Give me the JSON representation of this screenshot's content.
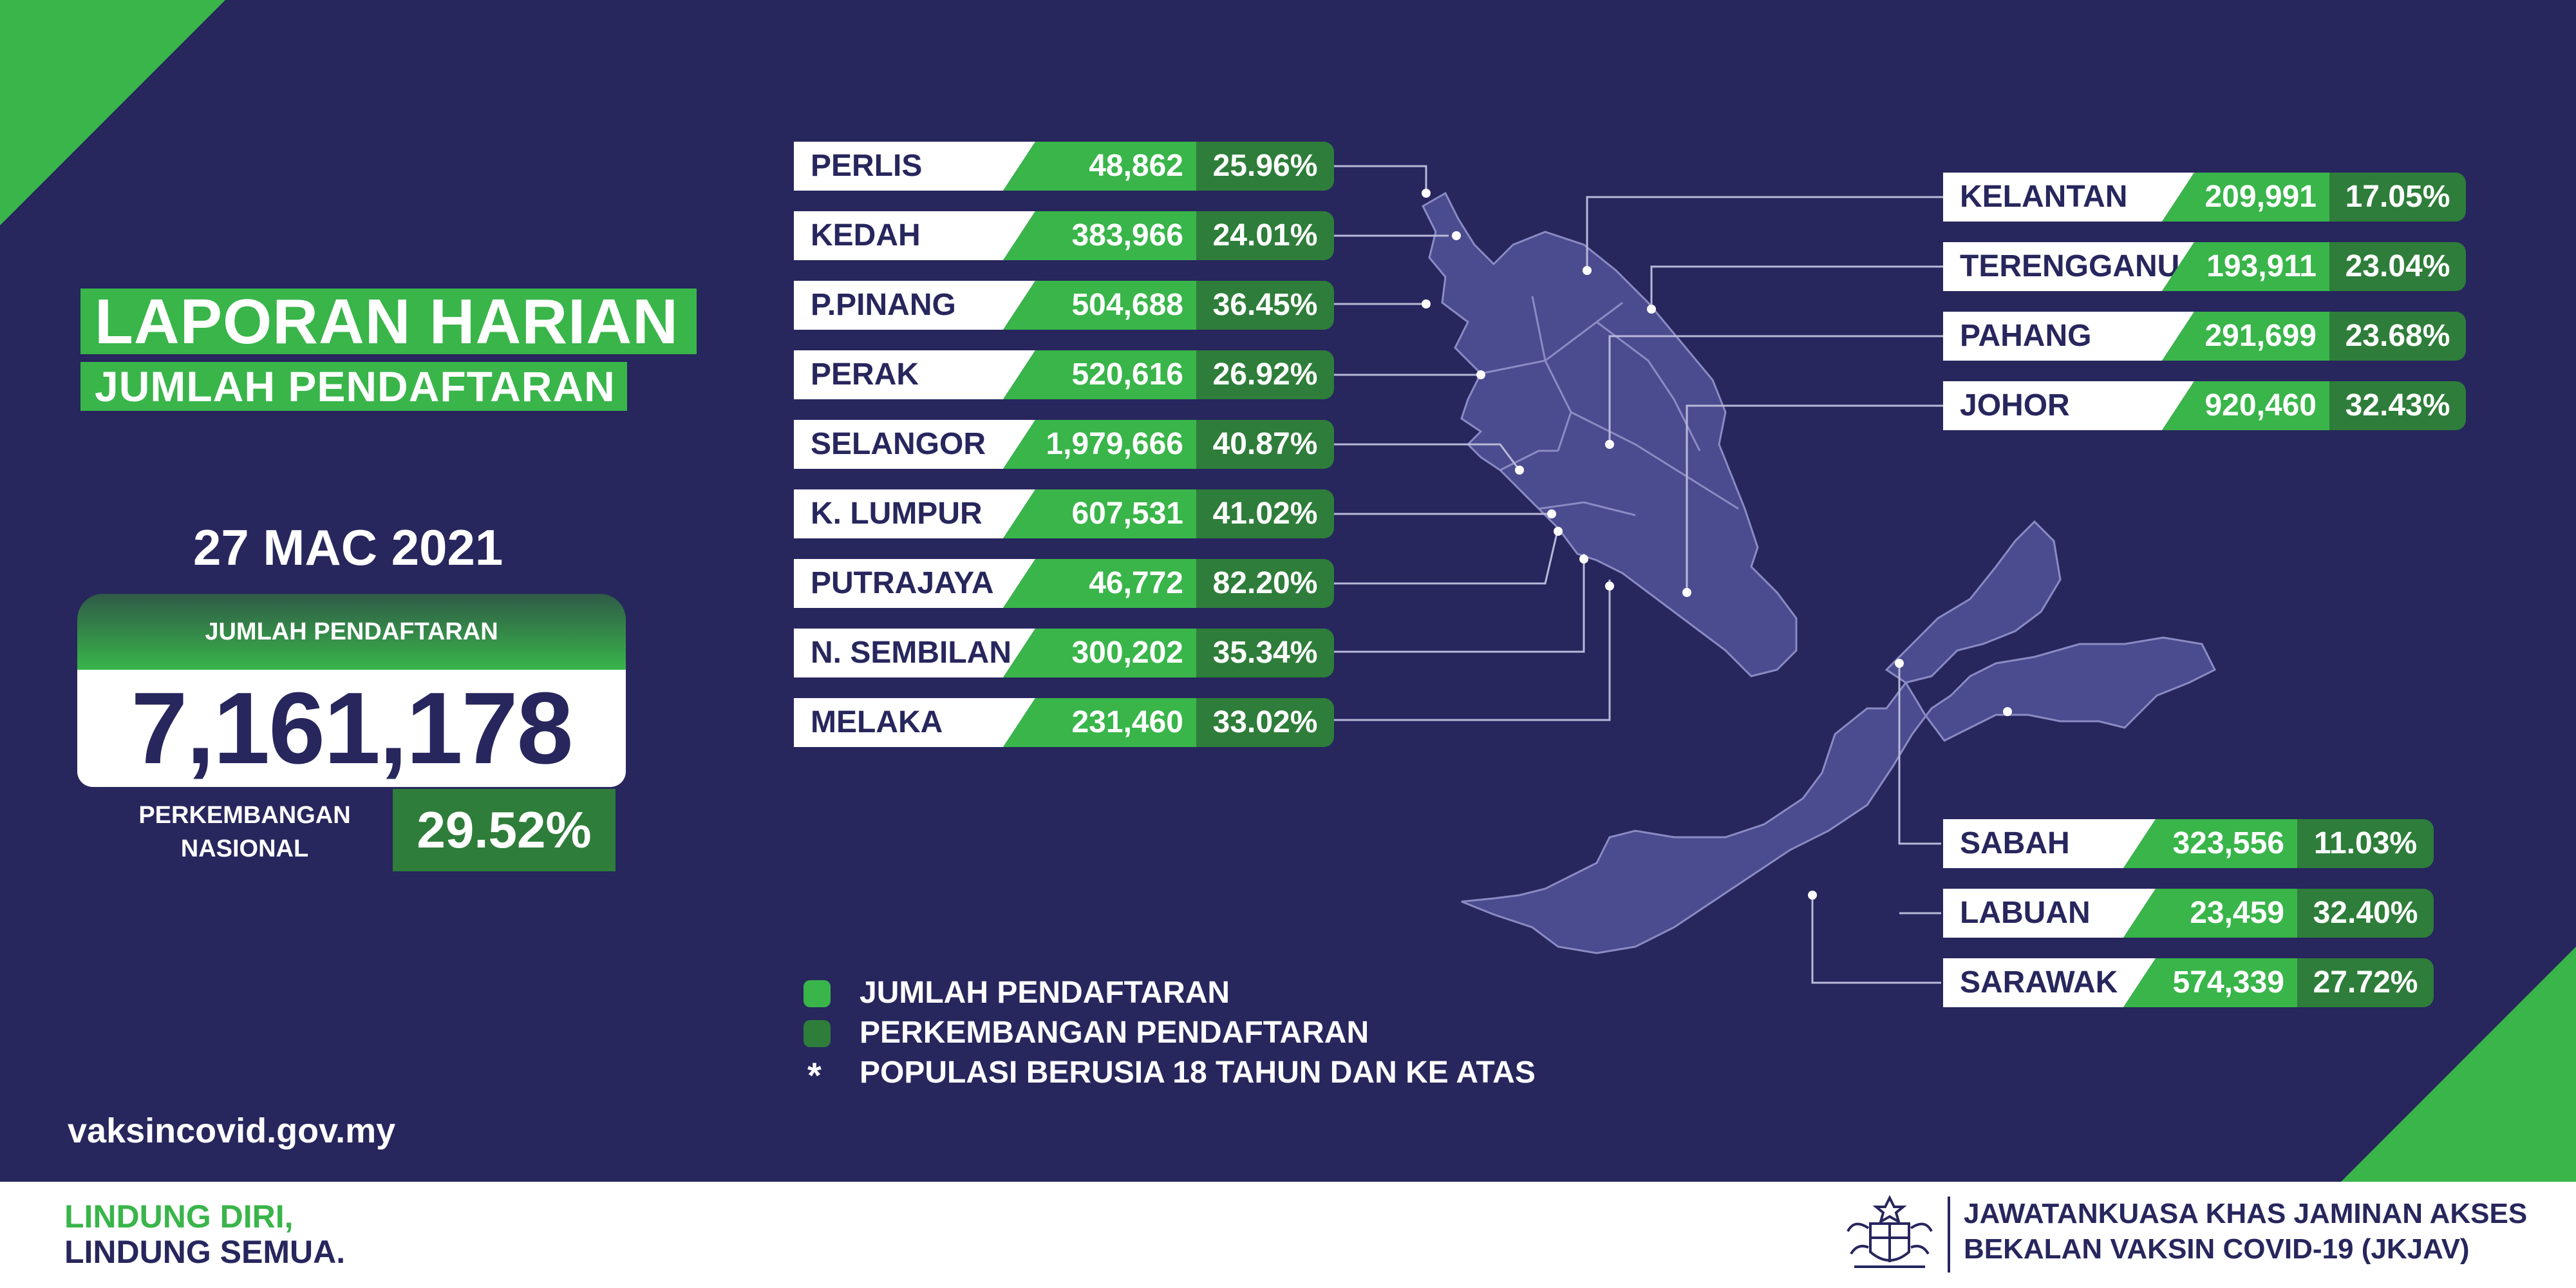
{
  "title": {
    "line1": "LAPORAN HARIAN",
    "line2": "JUMLAH PENDAFTARAN"
  },
  "date": "27 MAC 2021",
  "summary": {
    "label": "JUMLAH PENDAFTARAN",
    "total": "7,161,178",
    "progress_label_line1": "PERKEMBANGAN",
    "progress_label_line2": "NASIONAL",
    "progress_pct": "29.52%"
  },
  "states_left": [
    {
      "name": "PERLIS",
      "registrations": "48,862",
      "progress": "25.96%"
    },
    {
      "name": "KEDAH",
      "registrations": "383,966",
      "progress": "24.01%"
    },
    {
      "name": "P.PINANG",
      "registrations": "504,688",
      "progress": "36.45%"
    },
    {
      "name": "PERAK",
      "registrations": "520,616",
      "progress": "26.92%"
    },
    {
      "name": "SELANGOR",
      "registrations": "1,979,666",
      "progress": "40.87%"
    },
    {
      "name": "K. LUMPUR",
      "registrations": "607,531",
      "progress": "41.02%"
    },
    {
      "name": "PUTRAJAYA",
      "registrations": "46,772",
      "progress": "82.20%"
    },
    {
      "name": "N. SEMBILAN",
      "registrations": "300,202",
      "progress": "35.34%"
    },
    {
      "name": "MELAKA",
      "registrations": "231,460",
      "progress": "33.02%"
    }
  ],
  "states_right_top": [
    {
      "name": "KELANTAN",
      "registrations": "209,991",
      "progress": "17.05%"
    },
    {
      "name": "TERENGGANU",
      "registrations": "193,911",
      "progress": "23.04%"
    },
    {
      "name": "PAHANG",
      "registrations": "291,699",
      "progress": "23.68%"
    },
    {
      "name": "JOHOR",
      "registrations": "920,460",
      "progress": "32.43%"
    }
  ],
  "states_right_bottom": [
    {
      "name": "SABAH",
      "registrations": "323,556",
      "progress": "11.03%"
    },
    {
      "name": "LABUAN",
      "registrations": "23,459",
      "progress": "32.40%"
    },
    {
      "name": "SARAWAK",
      "registrations": "574,339",
      "progress": "27.72%"
    }
  ],
  "legend": {
    "item1": "JUMLAH PENDAFTARAN",
    "item2": "PERKEMBANGAN PENDAFTARAN",
    "item3_marker": "*",
    "item3": "POPULASI BERUSIA 18 TAHUN DAN KE ATAS"
  },
  "website": "vaksincovid.gov.my",
  "footer": {
    "slogan_line1": "LINDUNG DIRI,",
    "slogan_line2": "LINDUNG SEMUA.",
    "org_line1": "JAWATANKUASA KHAS JAMINAN AKSES",
    "org_line2": "BEKALAN VAKSIN COVID-19 (JKJAV)"
  },
  "colors": {
    "background": "#27265d",
    "accent_green": "#39b54a",
    "dark_green": "#2e7d3a",
    "map_fill": "#4b4b8f"
  },
  "icons": {
    "crest": "malaysia-coat-of-arms-icon"
  }
}
